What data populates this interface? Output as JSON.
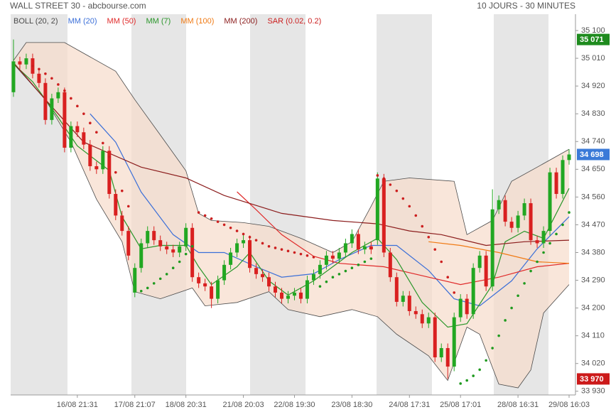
{
  "chart_data": {
    "type": "candlestick",
    "title": "WALL STREET 30 - abcbourse.com",
    "subtitle": "10 JOURS - 30 MINUTES",
    "xlim": [
      -0.44,
      88
    ],
    "ylim": [
      33918,
      35153
    ],
    "yticks": [
      {
        "value": 35100,
        "label": "35 100"
      },
      {
        "value": 35010,
        "label": "35 010"
      },
      {
        "value": 34920,
        "label": "34 920"
      },
      {
        "value": 34830,
        "label": "34 830"
      },
      {
        "value": 34740,
        "label": "34 740"
      },
      {
        "value": 34650,
        "label": "34 650"
      },
      {
        "value": 34560,
        "label": "34 560"
      },
      {
        "value": 34470,
        "label": "34 470"
      },
      {
        "value": 34380,
        "label": "34 380"
      },
      {
        "value": 34290,
        "label": "34 290"
      },
      {
        "value": 34200,
        "label": "34 200"
      },
      {
        "value": 34110,
        "label": "34 110"
      },
      {
        "value": 34020,
        "label": "34 020"
      },
      {
        "value": 33930,
        "label": "33 930"
      }
    ],
    "xticks": [
      {
        "value": 10,
        "label": "16/08 21:31"
      },
      {
        "value": 19,
        "label": "17/08 21:07"
      },
      {
        "value": 27,
        "label": "18/08 20:31"
      },
      {
        "value": 36,
        "label": "21/08 20:03"
      },
      {
        "value": 44,
        "label": "22/08 19:30"
      },
      {
        "value": 53,
        "label": "23/08 18:30"
      },
      {
        "value": 62,
        "label": "24/08 17:31"
      },
      {
        "value": 70,
        "label": "25/08 17:01"
      },
      {
        "value": 79,
        "label": "28/08 16:31"
      },
      {
        "value": 87,
        "label": "29/08 16:03"
      }
    ],
    "grid": false,
    "candles": {
      "up_color": "#22a722",
      "down_color": "#d92020",
      "open": [
        34900,
        35000,
        34990,
        35010,
        34960,
        34930,
        34810,
        34880,
        34900,
        34720,
        34790,
        34770,
        34730,
        34660,
        34650,
        34710,
        34570,
        34500,
        34450,
        34250,
        34330,
        34410,
        34450,
        34420,
        34400,
        34390,
        34380,
        34400,
        34460,
        34300,
        34280,
        34270,
        34230,
        34290,
        34340,
        34380,
        34410,
        34420,
        34330,
        34310,
        34300,
        34270,
        34250,
        34230,
        34240,
        34250,
        34230,
        34290,
        34310,
        34340,
        34370,
        34360,
        34380,
        34410,
        34440,
        34390,
        34400,
        34420,
        34620,
        34380,
        34300,
        34220,
        34240,
        34190,
        34180,
        34150,
        34170,
        34040,
        34070,
        34010,
        34170,
        34230,
        34180,
        34330,
        34370,
        34270,
        34520,
        34550,
        34480,
        34460,
        34500,
        34540,
        34420,
        34410,
        34450,
        34640,
        34570,
        34680
      ],
      "high": [
        35071,
        35015,
        35025,
        35025,
        34975,
        34945,
        34895,
        34915,
        34915,
        34805,
        34805,
        34785,
        34745,
        34675,
        34725,
        34725,
        34585,
        34515,
        34465,
        34345,
        34425,
        34465,
        34465,
        34435,
        34415,
        34405,
        34415,
        34475,
        34475,
        34315,
        34295,
        34285,
        34305,
        34355,
        34395,
        34425,
        34440,
        34435,
        34345,
        34325,
        34315,
        34285,
        34265,
        34255,
        34265,
        34265,
        34305,
        34325,
        34355,
        34385,
        34385,
        34395,
        34425,
        34455,
        34455,
        34415,
        34415,
        34640,
        34635,
        34395,
        34315,
        34255,
        34255,
        34205,
        34195,
        34185,
        34185,
        34085,
        34085,
        34185,
        34245,
        34245,
        34345,
        34385,
        34385,
        34585,
        34565,
        34565,
        34495,
        34515,
        34555,
        34555,
        34435,
        34465,
        34655,
        34655,
        34695,
        34715
      ],
      "low": [
        34885,
        34975,
        34975,
        34945,
        34915,
        34795,
        34795,
        34865,
        34705,
        34705,
        34755,
        34715,
        34645,
        34635,
        34635,
        34555,
        34485,
        34435,
        34355,
        34235,
        34315,
        34395,
        34405,
        34385,
        34375,
        34365,
        34365,
        34385,
        34285,
        34265,
        34255,
        34200,
        34215,
        34275,
        34325,
        34365,
        34395,
        34315,
        34295,
        34285,
        34255,
        34235,
        34215,
        34215,
        34225,
        34215,
        34215,
        34275,
        34295,
        34325,
        34345,
        34345,
        34365,
        34395,
        34375,
        34375,
        34375,
        34405,
        34365,
        34285,
        34205,
        34205,
        34175,
        34165,
        34135,
        34135,
        34025,
        34025,
        33970,
        33995,
        34155,
        34165,
        34165,
        34315,
        34255,
        34255,
        34505,
        34465,
        34445,
        34445,
        34485,
        34405,
        34395,
        34395,
        34435,
        34555,
        34555,
        34665
      ],
      "close": [
        35000,
        34990,
        35010,
        34960,
        34930,
        34810,
        34880,
        34900,
        34720,
        34790,
        34770,
        34730,
        34660,
        34650,
        34710,
        34570,
        34500,
        34450,
        34370,
        34330,
        34410,
        34450,
        34420,
        34400,
        34390,
        34380,
        34400,
        34460,
        34300,
        34280,
        34270,
        34230,
        34290,
        34340,
        34380,
        34410,
        34420,
        34330,
        34310,
        34300,
        34270,
        34250,
        34230,
        34240,
        34250,
        34230,
        34290,
        34310,
        34340,
        34370,
        34360,
        34380,
        34410,
        34440,
        34390,
        34400,
        34390,
        34620,
        34380,
        34300,
        34220,
        34240,
        34190,
        34180,
        34150,
        34170,
        34040,
        34070,
        34010,
        34170,
        34230,
        34180,
        34330,
        34370,
        34270,
        34520,
        34550,
        34480,
        34460,
        34500,
        34540,
        34420,
        34410,
        34450,
        34640,
        34570,
        34680,
        34698
      ]
    },
    "bollinger": {
      "name": "BOLL (20, 2)",
      "color": "#4a4a4a",
      "fill": "#f7dccb",
      "upper": {
        "x": [
          0,
          2,
          8,
          16,
          19,
          23,
          27,
          29,
          31,
          36,
          40,
          45,
          50,
          53,
          56,
          58,
          62,
          69,
          71,
          75,
          78,
          82,
          87
        ],
        "values": [
          35003,
          35061,
          35061,
          34968,
          34876,
          34761,
          34645,
          34507,
          34484,
          34477,
          34465,
          34426,
          34380,
          34415,
          34530,
          34611,
          34622,
          34611,
          34438,
          34484,
          34611,
          34657,
          34715
        ]
      },
      "lower": {
        "x": [
          0,
          5,
          9,
          13,
          17,
          19,
          23,
          28,
          30,
          35,
          40,
          43,
          48,
          53,
          57,
          60,
          65,
          68,
          71,
          73,
          76,
          79,
          81,
          83,
          87
        ],
        "values": [
          34992,
          34876,
          34738,
          34553,
          34415,
          34253,
          34230,
          34265,
          34207,
          34218,
          34253,
          34195,
          34172,
          34195,
          34172,
          34115,
          34045,
          33965,
          34138,
          34115,
          33953,
          33941,
          33999,
          34184,
          34276
        ]
      }
    },
    "series": [
      {
        "name": "MM (20)",
        "color": "#3b6fd8",
        "x": [
          12,
          16,
          20,
          25,
          29,
          33,
          38,
          42,
          47,
          51,
          56,
          60,
          65,
          69,
          73,
          78,
          82,
          87
        ],
        "values": [
          34830,
          34738,
          34576,
          34438,
          34380,
          34380,
          34334,
          34300,
          34311,
          34357,
          34403,
          34403,
          34322,
          34230,
          34207,
          34288,
          34392,
          34496
        ]
      },
      {
        "name": "MM (50)",
        "color": "#e02a2a",
        "x": [
          35,
          38,
          42,
          47,
          51,
          58,
          65,
          70,
          76,
          82,
          87
        ],
        "values": [
          34577,
          34519,
          34438,
          34368,
          34345,
          34334,
          34300,
          34276,
          34300,
          34334,
          34345
        ]
      },
      {
        "name": "MM (7)",
        "color": "#2a962a",
        "x": [
          0,
          3,
          7,
          10,
          15,
          17,
          20,
          23,
          27,
          29,
          31,
          35,
          37,
          40,
          43,
          47,
          50,
          53,
          57,
          60,
          64,
          68,
          71,
          75,
          77,
          80,
          83,
          87
        ],
        "values": [
          34992,
          34934,
          34818,
          34726,
          34646,
          34496,
          34392,
          34403,
          34403,
          34334,
          34276,
          34334,
          34380,
          34288,
          34242,
          34288,
          34334,
          34380,
          34426,
          34357,
          34218,
          34138,
          34149,
          34276,
          34415,
          34449,
          34426,
          34588
        ]
      },
      {
        "name": "MM (100)",
        "color": "#f07a14",
        "x": [
          65,
          70,
          76,
          82,
          87
        ],
        "values": [
          34415,
          34403,
          34380,
          34350,
          34345
        ]
      },
      {
        "name": "MM (200)",
        "color": "#8b1c1c",
        "x": [
          0,
          5,
          11,
          20,
          27,
          33,
          42,
          50,
          57,
          62,
          67,
          74,
          80,
          87
        ],
        "values": [
          34996,
          34876,
          34738,
          34657,
          34622,
          34565,
          34507,
          34484,
          34473,
          34450,
          34438,
          34403,
          34415,
          34420
        ]
      }
    ],
    "sar": {
      "name": "SAR (0.02, 0.2)",
      "color": "#cc1f1f",
      "segments": [
        {
          "color": "#cc1f1f",
          "x": [
            3,
            4,
            5,
            6,
            7,
            8,
            9,
            10,
            11,
            12,
            13,
            14,
            15,
            16,
            17,
            18
          ],
          "values": [
            34985,
            34975,
            34960,
            34945,
            34925,
            34905,
            34880,
            34855,
            34830,
            34800,
            34770,
            34735,
            34690,
            34640,
            34580,
            34530
          ]
        },
        {
          "color": "#1f9a1f",
          "x": [
            20,
            21,
            22,
            23,
            24,
            25,
            26,
            27,
            28
          ],
          "values": [
            34255,
            34265,
            34280,
            34295,
            34310,
            34330,
            34350,
            34375,
            34400
          ]
        },
        {
          "color": "#cc1f1f",
          "x": [
            29,
            30,
            31,
            32,
            33,
            34,
            35,
            36,
            37,
            38,
            39,
            40,
            41,
            42,
            43,
            44,
            45,
            46,
            47
          ],
          "values": [
            34510,
            34500,
            34490,
            34480,
            34470,
            34460,
            34450,
            34440,
            34430,
            34420,
            34410,
            34400,
            34395,
            34390,
            34385,
            34380,
            34375,
            34370,
            34365
          ]
        },
        {
          "color": "#1f9a1f",
          "x": [
            48,
            49,
            50,
            51,
            52,
            53,
            54,
            55,
            56
          ],
          "values": [
            34270,
            34285,
            34300,
            34310,
            34320,
            34330,
            34340,
            34350,
            34360
          ]
        },
        {
          "color": "#cc1f1f",
          "x": [
            57,
            58,
            59,
            60,
            61,
            62,
            63,
            64,
            65,
            66,
            67,
            68,
            69
          ],
          "values": [
            34630,
            34620,
            34600,
            34580,
            34555,
            34530,
            34500,
            34465,
            34430,
            34390,
            34350,
            34300,
            34250
          ]
        },
        {
          "color": "#1f9a1f",
          "x": [
            70,
            71,
            72,
            73,
            74,
            75,
            76,
            77,
            78,
            79,
            80,
            81,
            82,
            83,
            84,
            85,
            86,
            87
          ],
          "values": [
            33955,
            33965,
            33980,
            34000,
            34030,
            34070,
            34110,
            34160,
            34200,
            34240,
            34280,
            34320,
            34350,
            34380,
            34410,
            34440,
            34470,
            34510
          ]
        }
      ]
    },
    "price_markers": [
      {
        "value": 35071,
        "label": "35 071",
        "color": "#1e8b1e"
      },
      {
        "value": 34698,
        "label": "34 698",
        "color": "#3a7ad8"
      },
      {
        "value": 33970,
        "label": "33 970",
        "color": "#cc1a1a"
      }
    ]
  }
}
